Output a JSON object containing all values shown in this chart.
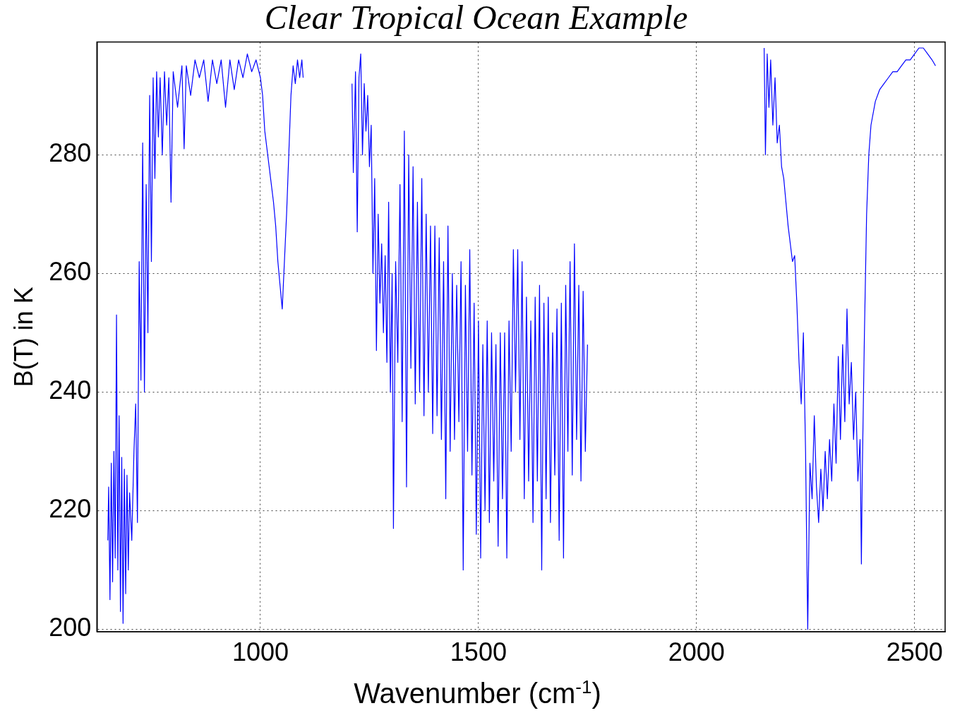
{
  "chart_data": {
    "type": "line",
    "title": "Clear Tropical Ocean Example",
    "xlabel": "Wavenumber (cm$^{-1}$)",
    "ylabel": "B(T) in K",
    "xlim": [
      625,
      2570
    ],
    "ylim": [
      199.6,
      299
    ],
    "xticks": [
      1000,
      1500,
      2000,
      2500
    ],
    "yticks": [
      200,
      220,
      240,
      260,
      280
    ],
    "grid": true,
    "legend": false,
    "marker": "none",
    "line_style": "solid",
    "series": [
      {
        "color": "#0000ff",
        "x": [
          650,
          652,
          655,
          658,
          661,
          664,
          667,
          670,
          673,
          676,
          679,
          682,
          685,
          688,
          691,
          694,
          697,
          700,
          705,
          710,
          714,
          718,
          722,
          726,
          730,
          734,
          738,
          742,
          746,
          750,
          754,
          758,
          762,
          766,
          770,
          775,
          780,
          785,
          790,
          795,
          800,
          810,
          820,
          825,
          830,
          840,
          850,
          860,
          870,
          880,
          890,
          900,
          910,
          920,
          930,
          940,
          950,
          960,
          970,
          980,
          990,
          1000,
          1005,
          1010,
          1020,
          1030,
          1035,
          1040,
          1045,
          1050,
          1055,
          1060,
          1065,
          1070,
          1075,
          1080,
          1085,
          1090,
          1095,
          1098,
          1150,
          1210,
          1213,
          1218,
          1222,
          1226,
          1230,
          1234,
          1238,
          1242,
          1246,
          1250,
          1254,
          1258,
          1262,
          1266,
          1270,
          1274,
          1278,
          1282,
          1286,
          1290,
          1294,
          1298,
          1302,
          1305,
          1310,
          1315,
          1320,
          1325,
          1330,
          1335,
          1340,
          1345,
          1350,
          1355,
          1360,
          1365,
          1370,
          1375,
          1380,
          1385,
          1390,
          1395,
          1400,
          1405,
          1410,
          1415,
          1420,
          1425,
          1430,
          1435,
          1440,
          1445,
          1450,
          1455,
          1460,
          1465,
          1470,
          1475,
          1480,
          1485,
          1490,
          1495,
          1500,
          1505,
          1510,
          1515,
          1520,
          1525,
          1530,
          1535,
          1540,
          1545,
          1550,
          1555,
          1560,
          1565,
          1570,
          1575,
          1580,
          1585,
          1590,
          1595,
          1600,
          1605,
          1610,
          1615,
          1620,
          1625,
          1630,
          1635,
          1640,
          1645,
          1650,
          1655,
          1660,
          1665,
          1670,
          1675,
          1680,
          1685,
          1690,
          1695,
          1700,
          1705,
          1710,
          1715,
          1720,
          1725,
          1730,
          1735,
          1740,
          1745,
          1750,
          1850,
          2155,
          2158,
          2162,
          2166,
          2170,
          2175,
          2180,
          2185,
          2190,
          2195,
          2200,
          2205,
          2210,
          2215,
          2220,
          2225,
          2230,
          2235,
          2240,
          2245,
          2250,
          2255,
          2260,
          2265,
          2270,
          2275,
          2280,
          2285,
          2290,
          2295,
          2300,
          2305,
          2310,
          2315,
          2320,
          2325,
          2330,
          2335,
          2340,
          2345,
          2350,
          2355,
          2360,
          2365,
          2370,
          2375,
          2378,
          2380,
          2385,
          2390,
          2395,
          2400,
          2410,
          2420,
          2430,
          2440,
          2450,
          2460,
          2470,
          2480,
          2490,
          2500,
          2510,
          2520,
          2530,
          2540,
          2548
        ],
        "values": [
          215,
          224,
          205,
          228,
          208,
          230,
          212,
          253,
          210,
          236,
          203,
          229,
          201,
          227,
          206,
          226,
          210,
          223,
          215,
          230,
          238,
          218,
          262,
          242,
          282,
          240,
          275,
          250,
          290,
          262,
          293,
          276,
          294,
          283,
          293,
          280,
          294,
          285,
          293,
          272,
          294,
          288,
          295,
          281,
          295,
          290,
          296,
          293,
          296,
          289,
          296,
          292,
          296,
          288,
          296,
          291,
          296,
          293,
          297,
          294,
          296,
          293,
          290,
          284,
          278,
          272,
          268,
          262,
          258,
          254,
          262,
          270,
          280,
          290,
          295,
          292,
          296,
          293,
          296,
          293,
          null,
          292,
          277,
          294,
          267,
          293,
          297,
          280,
          292,
          284,
          290,
          278,
          285,
          260,
          276,
          247,
          270,
          255,
          265,
          250,
          263,
          245,
          272,
          240,
          260,
          217,
          262,
          245,
          275,
          235,
          284,
          224,
          280,
          244,
          278,
          238,
          272,
          240,
          276,
          236,
          270,
          240,
          268,
          233,
          268,
          236,
          266,
          232,
          262,
          222,
          268,
          230,
          260,
          232,
          258,
          235,
          262,
          210,
          258,
          230,
          264,
          226,
          255,
          216,
          252,
          212,
          248,
          220,
          252,
          218,
          250,
          225,
          248,
          214,
          250,
          222,
          250,
          212,
          252,
          230,
          264,
          240,
          264,
          232,
          262,
          222,
          256,
          225,
          252,
          218,
          256,
          225,
          258,
          210,
          255,
          222,
          256,
          218,
          250,
          226,
          254,
          215,
          255,
          212,
          258,
          230,
          262,
          226,
          265,
          232,
          258,
          225,
          257,
          230,
          248,
          null,
          298,
          280,
          297,
          288,
          296,
          285,
          293,
          282,
          285,
          278,
          276,
          272,
          268,
          265,
          262,
          263,
          255,
          245,
          238,
          250,
          230,
          200,
          228,
          222,
          236,
          224,
          218,
          227,
          220,
          230,
          222,
          232,
          225,
          238,
          228,
          246,
          232,
          248,
          235,
          254,
          238,
          245,
          232,
          240,
          225,
          232,
          211,
          226,
          250,
          270,
          280,
          285,
          289,
          291,
          292,
          293,
          294,
          294,
          295,
          296,
          296,
          297,
          298,
          298,
          297,
          296,
          295
        ]
      }
    ]
  }
}
